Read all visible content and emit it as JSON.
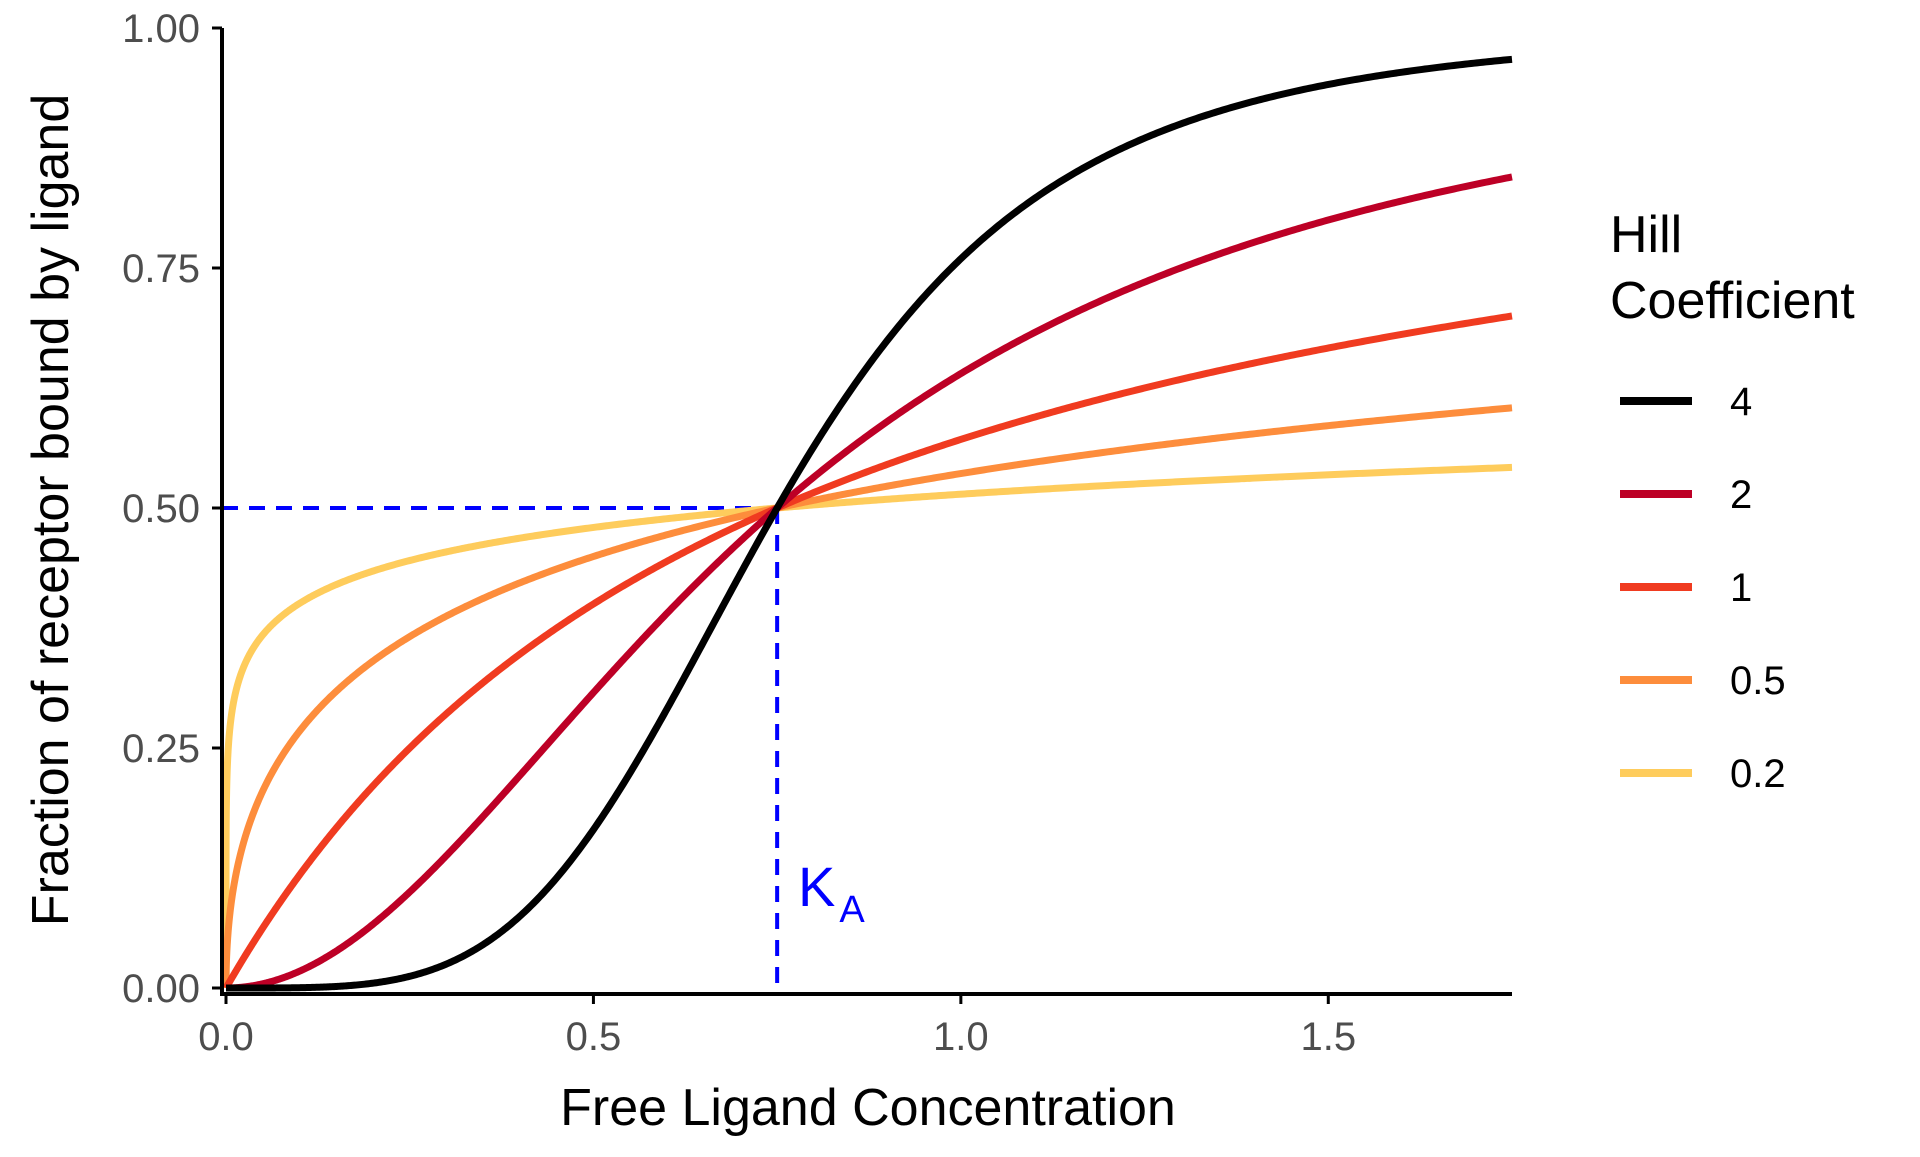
{
  "chart_data": {
    "type": "line",
    "title": "",
    "xlabel": "Free Ligand Concentration",
    "ylabel": "Fraction of receptor bound by ligand",
    "xlim": [
      0,
      1.75
    ],
    "ylim": [
      0,
      1
    ],
    "x_ticks": [
      "0.0",
      "0.5",
      "1.0",
      "1.5"
    ],
    "x_tick_values": [
      0,
      0.5,
      1.0,
      1.5
    ],
    "y_ticks": [
      "0.00",
      "0.25",
      "0.50",
      "0.75",
      "1.00"
    ],
    "y_tick_values": [
      0,
      0.25,
      0.5,
      0.75,
      1.0
    ],
    "grid": false,
    "legend": {
      "title_line1": "Hill",
      "title_line2": "Coefficient",
      "position": "right"
    },
    "function": "y = x^n / (K^n + x^n)",
    "K": 0.75,
    "series": [
      {
        "label": "4",
        "n": 4,
        "color": "#000000"
      },
      {
        "label": "2",
        "n": 2,
        "color": "#BD0026"
      },
      {
        "label": "1",
        "n": 1,
        "color": "#F03B20"
      },
      {
        "label": "0.5",
        "n": 0.5,
        "color": "#FD8D3C"
      },
      {
        "label": "0.2",
        "n": 0.2,
        "color": "#FECC5C"
      }
    ],
    "reference_lines": {
      "color": "#0000FF",
      "y_value": 0.5,
      "x_value": 0.75
    },
    "annotation": {
      "main": "K",
      "subscript": "A"
    }
  }
}
